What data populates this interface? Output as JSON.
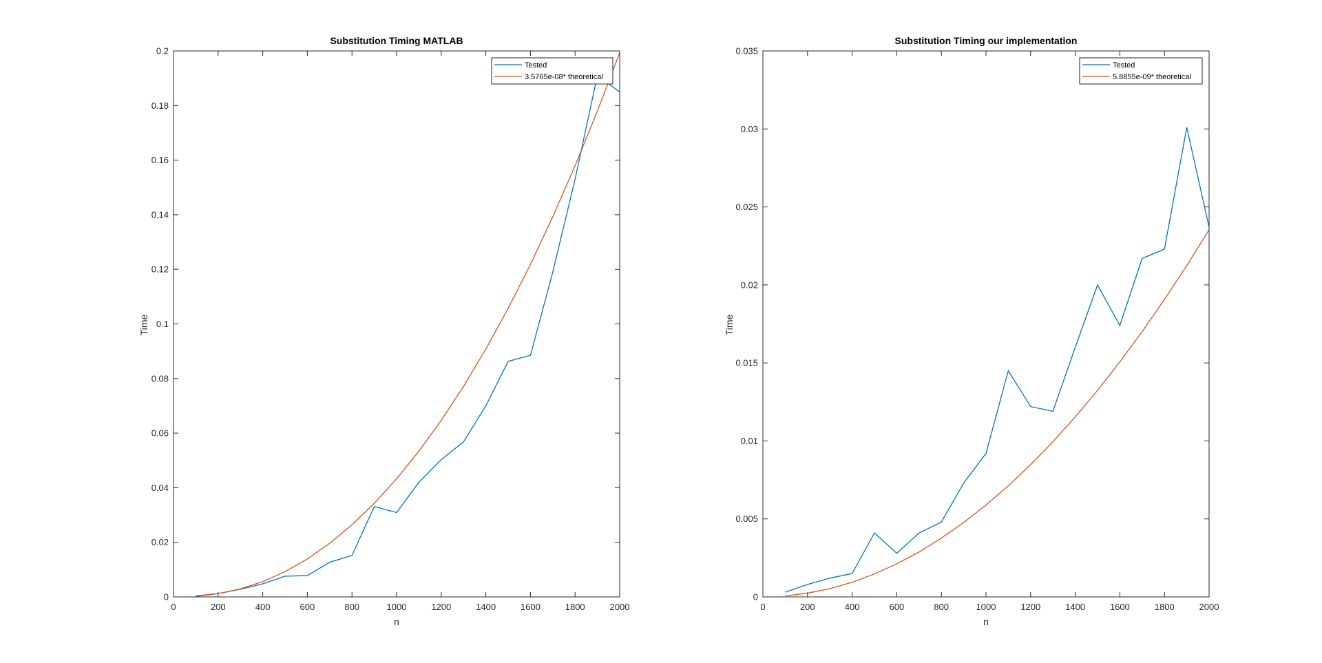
{
  "colors": {
    "background": "#ffffff",
    "axes": "#262626",
    "tested": "#0072BD",
    "theoretical": "#D95319"
  },
  "chart_data": [
    {
      "type": "line",
      "title": "Substitution Timing MATLAB",
      "xlabel": "n",
      "ylabel": "Time",
      "xlim": [
        0,
        2000
      ],
      "ylim": [
        0,
        0.2
      ],
      "xticks": [
        0,
        200,
        400,
        600,
        800,
        1000,
        1200,
        1400,
        1600,
        1800,
        2000
      ],
      "yticks": [
        0,
        0.02,
        0.04,
        0.06,
        0.08,
        0.1,
        0.12,
        0.14,
        0.16,
        0.18,
        0.2
      ],
      "xtick_labels": [
        "0",
        "200",
        "400",
        "600",
        "800",
        "1000",
        "1200",
        "1400",
        "1600",
        "1800",
        "2000"
      ],
      "ytick_labels": [
        "0",
        "0.02",
        "0.04",
        "0.06",
        "0.08",
        "0.1",
        "0.12",
        "0.14",
        "0.16",
        "0.18",
        "0.2"
      ],
      "grid": false,
      "legend_position": "top-right",
      "x": [
        100,
        200,
        300,
        400,
        500,
        600,
        700,
        800,
        900,
        1000,
        1100,
        1200,
        1300,
        1400,
        1500,
        1600,
        1700,
        1800,
        1900,
        2000
      ],
      "series": [
        {
          "name": "Tested",
          "color": "#0072BD",
          "values": [
            0.0002,
            0.0012,
            0.0028,
            0.0048,
            0.0076,
            0.0078,
            0.0127,
            0.0152,
            0.0331,
            0.0309,
            0.042,
            0.0503,
            0.0568,
            0.07,
            0.0863,
            0.0885,
            0.119,
            0.153,
            0.191,
            0.185
          ]
        },
        {
          "name": "3.5765e-08* theoretical",
          "color": "#D95319",
          "values": [
            0.00036,
            0.00123,
            0.00294,
            0.0056,
            0.00925,
            0.01392,
            0.01963,
            0.02641,
            0.03428,
            0.04327,
            0.05339,
            0.06467,
            0.07714,
            0.0908,
            0.1057,
            0.12184,
            0.13926,
            0.15796,
            0.17797,
            0.19932
          ]
        }
      ]
    },
    {
      "type": "line",
      "title": "Substitution Timing our implementation",
      "xlabel": "n",
      "ylabel": "Time",
      "xlim": [
        0,
        2000
      ],
      "ylim": [
        0,
        0.035
      ],
      "xticks": [
        0,
        200,
        400,
        600,
        800,
        1000,
        1200,
        1400,
        1600,
        1800,
        2000
      ],
      "yticks": [
        0,
        0.005,
        0.01,
        0.015,
        0.02,
        0.025,
        0.03,
        0.035
      ],
      "xtick_labels": [
        "0",
        "200",
        "400",
        "600",
        "800",
        "1000",
        "1200",
        "1400",
        "1600",
        "1800",
        "2000"
      ],
      "ytick_labels": [
        "0",
        "0.005",
        "0.01",
        "0.015",
        "0.02",
        "0.025",
        "0.03",
        "0.035"
      ],
      "grid": false,
      "legend_position": "top-right",
      "x": [
        100,
        200,
        300,
        400,
        500,
        600,
        700,
        800,
        900,
        1000,
        1100,
        1200,
        1300,
        1400,
        1500,
        1600,
        1700,
        1800,
        1900,
        2000
      ],
      "series": [
        {
          "name": "Tested",
          "color": "#0072BD",
          "values": [
            0.0003,
            0.0008,
            0.0012,
            0.0015,
            0.0041,
            0.0028,
            0.0041,
            0.0048,
            0.0073,
            0.0092,
            0.0145,
            0.0122,
            0.0119,
            0.016,
            0.02,
            0.0174,
            0.0217,
            0.0223,
            0.0301,
            0.0237
          ]
        },
        {
          "name": "5.8855e-09* theoretical",
          "color": "#D95319",
          "values": [
            6e-05,
            0.00024,
            0.00053,
            0.00094,
            0.00147,
            0.00212,
            0.00288,
            0.00377,
            0.00477,
            0.00589,
            0.00712,
            0.00848,
            0.00995,
            0.01154,
            0.01324,
            0.01507,
            0.01701,
            0.01907,
            0.02124,
            0.02354
          ]
        }
      ]
    }
  ]
}
